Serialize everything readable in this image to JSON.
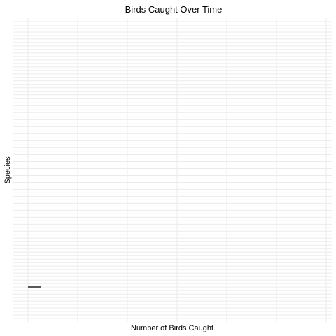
{
  "chart_data": {
    "type": "bar",
    "orientation": "horizontal",
    "title": "Birds Caught Over Time",
    "xlabel": "Number of Birds Caught",
    "ylabel": "Species",
    "category_count": 86,
    "highlighted_category_index": 10,
    "x_tick_count": 7,
    "x_tick_labels_shown": false,
    "y_tick_labels_shown": false,
    "grid": true,
    "legend": "none"
  },
  "colors": {
    "panel_background": "#ffffff",
    "grid_line": "#ebebeb",
    "bar": "#595959"
  }
}
